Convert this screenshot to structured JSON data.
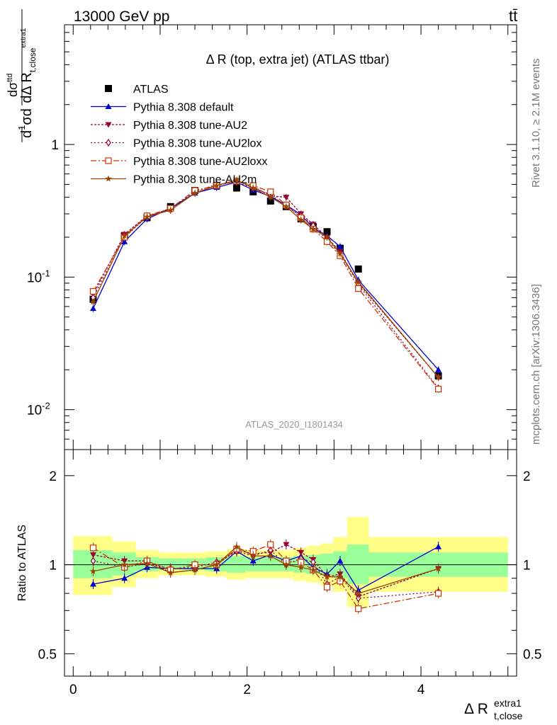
{
  "header": {
    "left": "13000 GeV pp",
    "right": "tt̄"
  },
  "side_labels": {
    "rivet": "Rivet 3.1.10, ≥ 2.1M events",
    "mcplots": "mcplots.cern.ch [arXiv:1306.3436]"
  },
  "chart_data": [
    {
      "type": "line",
      "title": "Δ R (top, extra jet) (ATLAS ttbar)",
      "analysis_id": "ATLAS_2020_I1801434",
      "xlabel": "Δ R_{t,close}^{extra1}",
      "ylabel": "dσ^{ttd} / dΔ R_{t,close}^{extra1} · 1/σ",
      "yscale": "log",
      "xlim": [
        -0.1,
        5.1
      ],
      "ylim": [
        0.005,
        8
      ],
      "x_ticks": [
        "0",
        "2",
        "4"
      ],
      "y_ticks": [
        "10^-2",
        "10^-1",
        "1"
      ],
      "legend_position": "top-left",
      "x": [
        0.23,
        0.59,
        0.85,
        1.12,
        1.4,
        1.65,
        1.88,
        2.07,
        2.27,
        2.45,
        2.62,
        2.76,
        2.92,
        3.07,
        3.28,
        4.2
      ],
      "series": [
        {
          "name": "ATLAS",
          "color": "#000000",
          "marker": "square",
          "values": [
            0.068,
            0.205,
            0.282,
            0.34,
            0.45,
            0.49,
            0.47,
            0.44,
            0.375,
            0.34,
            0.275,
            0.24,
            0.22,
            0.165,
            0.115,
            0.018
          ]
        },
        {
          "name": "Pythia 8.308 default",
          "color": "#0000cc",
          "marker": "triangle-up",
          "values": [
            0.058,
            0.185,
            0.275,
            0.33,
            0.43,
            0.475,
            0.52,
            0.455,
            0.405,
            0.35,
            0.295,
            0.235,
            0.205,
            0.17,
            0.095,
            0.02
          ]
        },
        {
          "name": "Pythia 8.308 tune-AU2",
          "color": "#990033",
          "marker": "triangle-down",
          "values": [
            0.074,
            0.21,
            0.29,
            0.32,
            0.43,
            0.49,
            0.53,
            0.48,
            0.41,
            0.4,
            0.3,
            0.25,
            0.2,
            0.155,
            0.09,
            0.0175
          ]
        },
        {
          "name": "Pythia 8.308 tune-AU2lox",
          "color": "#990033",
          "marker": "diamond-open",
          "values": [
            0.07,
            0.2,
            0.285,
            0.33,
            0.44,
            0.5,
            0.52,
            0.47,
            0.42,
            0.34,
            0.29,
            0.245,
            0.19,
            0.15,
            0.088,
            0.0145
          ]
        },
        {
          "name": "Pythia 8.308 tune-AU2loxx",
          "color": "#cc3300",
          "marker": "square-open",
          "values": [
            0.078,
            0.2,
            0.29,
            0.33,
            0.45,
            0.49,
            0.53,
            0.49,
            0.44,
            0.35,
            0.28,
            0.23,
            0.185,
            0.145,
            0.082,
            0.0143
          ]
        },
        {
          "name": "Pythia 8.308 tune-AU2m",
          "color": "#994400",
          "marker": "star",
          "values": [
            0.065,
            0.205,
            0.285,
            0.32,
            0.43,
            0.49,
            0.54,
            0.47,
            0.4,
            0.34,
            0.27,
            0.23,
            0.2,
            0.15,
            0.092,
            0.0175
          ]
        }
      ]
    },
    {
      "type": "line",
      "ylabel": "Ratio to ATLAS",
      "yscale": "log",
      "xlim": [
        -0.1,
        5.1
      ],
      "ylim": [
        0.42,
        2.45
      ],
      "y_ticks": [
        "0.5",
        "1",
        "2"
      ],
      "band_edges": [
        0.0,
        0.45,
        0.72,
        0.98,
        1.25,
        1.52,
        1.77,
        1.98,
        2.17,
        2.37,
        2.53,
        2.69,
        2.84,
        2.99,
        3.15,
        3.4,
        5.0
      ],
      "band_inner": [
        [
          0.9,
          1.12
        ],
        [
          0.92,
          1.1
        ],
        [
          0.95,
          1.06
        ],
        [
          0.96,
          1.05
        ],
        [
          0.96,
          1.05
        ],
        [
          0.95,
          1.06
        ],
        [
          0.94,
          1.07
        ],
        [
          0.95,
          1.06
        ],
        [
          0.95,
          1.06
        ],
        [
          0.95,
          1.06
        ],
        [
          0.94,
          1.07
        ],
        [
          0.93,
          1.08
        ],
        [
          0.92,
          1.09
        ],
        [
          0.9,
          1.11
        ],
        [
          0.86,
          1.17
        ],
        [
          0.91,
          1.1
        ]
      ],
      "band_outer": [
        [
          0.79,
          1.25
        ],
        [
          0.84,
          1.2
        ],
        [
          0.9,
          1.12
        ],
        [
          0.92,
          1.1
        ],
        [
          0.92,
          1.1
        ],
        [
          0.91,
          1.11
        ],
        [
          0.89,
          1.13
        ],
        [
          0.9,
          1.12
        ],
        [
          0.9,
          1.12
        ],
        [
          0.9,
          1.12
        ],
        [
          0.88,
          1.14
        ],
        [
          0.87,
          1.16
        ],
        [
          0.85,
          1.18
        ],
        [
          0.81,
          1.24
        ],
        [
          0.72,
          1.45
        ],
        [
          0.81,
          1.24
        ]
      ],
      "x": [
        0.23,
        0.59,
        0.85,
        1.12,
        1.4,
        1.65,
        1.88,
        2.07,
        2.27,
        2.45,
        2.62,
        2.76,
        2.92,
        3.07,
        3.28,
        4.2
      ],
      "series": [
        {
          "name": "Pythia 8.308 default",
          "color": "#0000cc",
          "values": [
            0.86,
            0.9,
            0.98,
            0.97,
            0.97,
            0.97,
            1.11,
            1.03,
            1.08,
            1.03,
            1.07,
            0.98,
            0.93,
            1.03,
            0.82,
            1.15
          ]
        },
        {
          "name": "Pythia 8.308 tune-AU2",
          "color": "#990033",
          "values": [
            1.08,
            1.03,
            1.03,
            0.94,
            0.96,
            1.0,
            1.12,
            1.09,
            1.1,
            1.17,
            1.1,
            1.04,
            0.91,
            0.93,
            0.78,
            0.97
          ]
        },
        {
          "name": "Pythia 8.308 tune-AU2lox",
          "color": "#990033",
          "values": [
            1.03,
            0.98,
            1.01,
            0.97,
            0.98,
            1.02,
            1.11,
            1.07,
            1.12,
            1.0,
            1.05,
            1.02,
            0.86,
            0.91,
            0.77,
            0.81
          ]
        },
        {
          "name": "Pythia 8.308 tune-AU2loxx",
          "color": "#cc3300",
          "values": [
            1.14,
            0.98,
            1.03,
            0.96,
            1.0,
            1.0,
            1.13,
            1.11,
            1.17,
            1.03,
            1.02,
            0.96,
            0.84,
            0.88,
            0.71,
            0.8
          ]
        },
        {
          "name": "Pythia 8.308 tune-AU2m",
          "color": "#994400",
          "values": [
            0.95,
            1.0,
            1.01,
            0.94,
            0.96,
            1.0,
            1.15,
            1.07,
            1.07,
            1.0,
            0.98,
            0.96,
            0.91,
            0.91,
            0.8,
            0.97
          ]
        }
      ]
    }
  ]
}
